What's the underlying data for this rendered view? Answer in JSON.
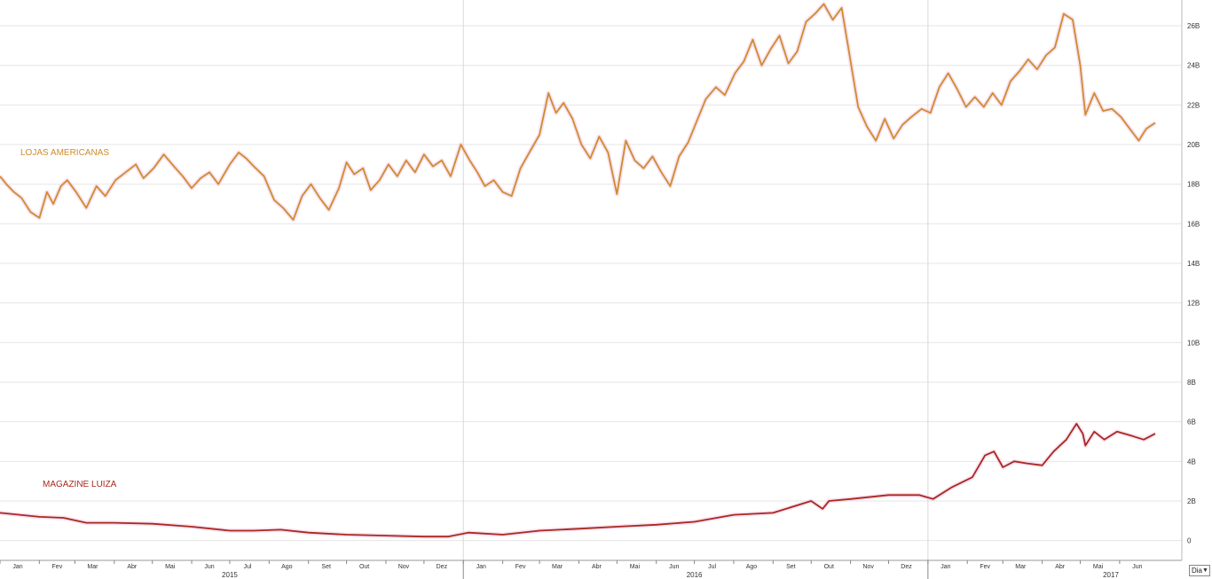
{
  "chart_data": {
    "type": "line",
    "y_axis": {
      "position": "right",
      "ylim": [
        -1,
        27.3
      ],
      "ticks": [
        0,
        2,
        4,
        6,
        8,
        10,
        12,
        14,
        16,
        18,
        20,
        22,
        24,
        26
      ],
      "tick_labels": [
        "0",
        "2B",
        "4B",
        "6B",
        "8B",
        "10B",
        "12B",
        "14B",
        "16B",
        "18B",
        "20B",
        "22B",
        "24B",
        "26B"
      ]
    },
    "x_axis": {
      "start": "2015-01-01",
      "end": "2017-07-20",
      "month_labels": [
        {
          "date": "2015-01-15",
          "label": "Jan"
        },
        {
          "date": "2015-02-15",
          "label": "Fev"
        },
        {
          "date": "2015-03-15",
          "label": "Mar"
        },
        {
          "date": "2015-04-15",
          "label": "Abr"
        },
        {
          "date": "2015-05-15",
          "label": "Mai"
        },
        {
          "date": "2015-06-15",
          "label": "Jun"
        },
        {
          "date": "2015-07-15",
          "label": "Jul"
        },
        {
          "date": "2015-08-15",
          "label": "Ago"
        },
        {
          "date": "2015-09-15",
          "label": "Set"
        },
        {
          "date": "2015-10-15",
          "label": "Out"
        },
        {
          "date": "2015-11-15",
          "label": "Nov"
        },
        {
          "date": "2015-12-15",
          "label": "Dez"
        },
        {
          "date": "2016-01-15",
          "label": "Jan"
        },
        {
          "date": "2016-02-15",
          "label": "Fev"
        },
        {
          "date": "2016-03-15",
          "label": "Mar"
        },
        {
          "date": "2016-04-15",
          "label": "Abr"
        },
        {
          "date": "2016-05-15",
          "label": "Mai"
        },
        {
          "date": "2016-06-15",
          "label": "Jun"
        },
        {
          "date": "2016-07-15",
          "label": "Jul"
        },
        {
          "date": "2016-08-15",
          "label": "Ago"
        },
        {
          "date": "2016-09-15",
          "label": "Set"
        },
        {
          "date": "2016-10-15",
          "label": "Out"
        },
        {
          "date": "2016-11-15",
          "label": "Nov"
        },
        {
          "date": "2016-12-15",
          "label": "Dez"
        },
        {
          "date": "2017-01-15",
          "label": "Jan"
        },
        {
          "date": "2017-02-15",
          "label": "Fev"
        },
        {
          "date": "2017-03-15",
          "label": "Mar"
        },
        {
          "date": "2017-04-15",
          "label": "Abr"
        },
        {
          "date": "2017-05-15",
          "label": "Mai"
        },
        {
          "date": "2017-06-15",
          "label": "Jun"
        }
      ],
      "year_labels": [
        {
          "date": "2015-07-01",
          "label": "2015"
        },
        {
          "date": "2016-07-01",
          "label": "2016"
        },
        {
          "date": "2017-07-01",
          "label": "2017"
        }
      ],
      "year_boundaries": [
        "2016-01-01",
        "2017-01-01"
      ]
    },
    "grid": true,
    "series": [
      {
        "name": "LOJAS AMERICANAS",
        "color": "#d08c2c",
        "points": [
          [
            "2015-01-01",
            18.4
          ],
          [
            "2015-01-06",
            18.0
          ],
          [
            "2015-01-12",
            17.6
          ],
          [
            "2015-01-18",
            17.3
          ],
          [
            "2015-01-25",
            16.6
          ],
          [
            "2015-02-01",
            16.3
          ],
          [
            "2015-02-07",
            17.6
          ],
          [
            "2015-02-12",
            17.0
          ],
          [
            "2015-02-18",
            17.9
          ],
          [
            "2015-02-23",
            18.2
          ],
          [
            "2015-03-02",
            17.6
          ],
          [
            "2015-03-10",
            16.8
          ],
          [
            "2015-03-18",
            17.9
          ],
          [
            "2015-03-25",
            17.4
          ],
          [
            "2015-04-02",
            18.2
          ],
          [
            "2015-04-10",
            18.6
          ],
          [
            "2015-04-18",
            19.0
          ],
          [
            "2015-04-24",
            18.3
          ],
          [
            "2015-05-02",
            18.8
          ],
          [
            "2015-05-10",
            19.5
          ],
          [
            "2015-05-18",
            18.9
          ],
          [
            "2015-05-25",
            18.4
          ],
          [
            "2015-06-01",
            17.8
          ],
          [
            "2015-06-08",
            18.3
          ],
          [
            "2015-06-15",
            18.6
          ],
          [
            "2015-06-22",
            18.0
          ],
          [
            "2015-07-01",
            19.0
          ],
          [
            "2015-07-08",
            19.6
          ],
          [
            "2015-07-14",
            19.3
          ],
          [
            "2015-07-20",
            18.9
          ],
          [
            "2015-07-28",
            18.4
          ],
          [
            "2015-08-05",
            17.2
          ],
          [
            "2015-08-12",
            16.8
          ],
          [
            "2015-08-20",
            16.2
          ],
          [
            "2015-08-27",
            17.4
          ],
          [
            "2015-09-03",
            18.0
          ],
          [
            "2015-09-10",
            17.3
          ],
          [
            "2015-09-17",
            16.7
          ],
          [
            "2015-09-25",
            17.8
          ],
          [
            "2015-10-01",
            19.1
          ],
          [
            "2015-10-07",
            18.5
          ],
          [
            "2015-10-14",
            18.8
          ],
          [
            "2015-10-20",
            17.7
          ],
          [
            "2015-10-27",
            18.2
          ],
          [
            "2015-11-03",
            19.0
          ],
          [
            "2015-11-10",
            18.4
          ],
          [
            "2015-11-17",
            19.2
          ],
          [
            "2015-11-24",
            18.6
          ],
          [
            "2015-12-01",
            19.5
          ],
          [
            "2015-12-08",
            18.9
          ],
          [
            "2015-12-15",
            19.2
          ],
          [
            "2015-12-22",
            18.4
          ],
          [
            "2015-12-30",
            20.0
          ],
          [
            "2016-01-06",
            19.2
          ],
          [
            "2016-01-12",
            18.6
          ],
          [
            "2016-01-18",
            17.9
          ],
          [
            "2016-01-25",
            18.2
          ],
          [
            "2016-02-01",
            17.6
          ],
          [
            "2016-02-08",
            17.4
          ],
          [
            "2016-02-15",
            18.8
          ],
          [
            "2016-02-22",
            19.6
          ],
          [
            "2016-03-01",
            20.5
          ],
          [
            "2016-03-08",
            22.6
          ],
          [
            "2016-03-14",
            21.6
          ],
          [
            "2016-03-20",
            22.1
          ],
          [
            "2016-03-27",
            21.3
          ],
          [
            "2016-04-03",
            20.0
          ],
          [
            "2016-04-10",
            19.3
          ],
          [
            "2016-04-17",
            20.4
          ],
          [
            "2016-04-24",
            19.6
          ],
          [
            "2016-05-01",
            17.5
          ],
          [
            "2016-05-08",
            20.2
          ],
          [
            "2016-05-15",
            19.2
          ],
          [
            "2016-05-22",
            18.8
          ],
          [
            "2016-05-29",
            19.4
          ],
          [
            "2016-06-05",
            18.6
          ],
          [
            "2016-06-12",
            17.9
          ],
          [
            "2016-06-19",
            19.4
          ],
          [
            "2016-06-26",
            20.1
          ],
          [
            "2016-07-03",
            21.2
          ],
          [
            "2016-07-10",
            22.3
          ],
          [
            "2016-07-18",
            22.9
          ],
          [
            "2016-07-25",
            22.5
          ],
          [
            "2016-08-02",
            23.6
          ],
          [
            "2016-08-09",
            24.2
          ],
          [
            "2016-08-16",
            25.3
          ],
          [
            "2016-08-23",
            24.0
          ],
          [
            "2016-08-30",
            24.8
          ],
          [
            "2016-09-06",
            25.5
          ],
          [
            "2016-09-13",
            24.1
          ],
          [
            "2016-09-20",
            24.7
          ],
          [
            "2016-09-27",
            26.2
          ],
          [
            "2016-10-04",
            26.6
          ],
          [
            "2016-10-11",
            27.1
          ],
          [
            "2016-10-18",
            26.3
          ],
          [
            "2016-10-25",
            26.9
          ],
          [
            "2016-10-31",
            24.6
          ],
          [
            "2016-11-07",
            21.9
          ],
          [
            "2016-11-14",
            20.9
          ],
          [
            "2016-11-21",
            20.2
          ],
          [
            "2016-11-28",
            21.3
          ],
          [
            "2016-12-05",
            20.3
          ],
          [
            "2016-12-12",
            21.0
          ],
          [
            "2016-12-19",
            21.4
          ],
          [
            "2016-12-27",
            21.8
          ],
          [
            "2017-01-03",
            21.6
          ],
          [
            "2017-01-10",
            22.9
          ],
          [
            "2017-01-17",
            23.6
          ],
          [
            "2017-01-24",
            22.8
          ],
          [
            "2017-01-31",
            21.9
          ],
          [
            "2017-02-07",
            22.4
          ],
          [
            "2017-02-14",
            21.9
          ],
          [
            "2017-02-21",
            22.6
          ],
          [
            "2017-02-28",
            22.0
          ],
          [
            "2017-03-07",
            23.2
          ],
          [
            "2017-03-14",
            23.7
          ],
          [
            "2017-03-21",
            24.3
          ],
          [
            "2017-03-28",
            23.8
          ],
          [
            "2017-04-04",
            24.5
          ],
          [
            "2017-04-11",
            24.9
          ],
          [
            "2017-04-18",
            26.6
          ],
          [
            "2017-04-25",
            26.3
          ],
          [
            "2017-05-01",
            24.0
          ],
          [
            "2017-05-05",
            21.5
          ],
          [
            "2017-05-12",
            22.6
          ],
          [
            "2017-05-19",
            21.7
          ],
          [
            "2017-05-26",
            21.8
          ],
          [
            "2017-06-02",
            21.4
          ],
          [
            "2017-06-09",
            20.8
          ],
          [
            "2017-06-16",
            20.2
          ],
          [
            "2017-06-22",
            20.8
          ],
          [
            "2017-06-29",
            21.1
          ]
        ]
      },
      {
        "name": "MAGAZINE LUIZA",
        "color": "#a8281e",
        "points": [
          [
            "2015-01-01",
            1.4
          ],
          [
            "2015-02-01",
            1.2
          ],
          [
            "2015-02-20",
            1.15
          ],
          [
            "2015-03-10",
            0.9
          ],
          [
            "2015-04-01",
            0.9
          ],
          [
            "2015-05-01",
            0.85
          ],
          [
            "2015-06-01",
            0.7
          ],
          [
            "2015-07-01",
            0.5
          ],
          [
            "2015-07-20",
            0.5
          ],
          [
            "2015-08-10",
            0.55
          ],
          [
            "2015-09-01",
            0.4
          ],
          [
            "2015-10-01",
            0.3
          ],
          [
            "2015-11-01",
            0.25
          ],
          [
            "2015-12-01",
            0.2
          ],
          [
            "2015-12-20",
            0.2
          ],
          [
            "2016-01-05",
            0.4
          ],
          [
            "2016-02-01",
            0.3
          ],
          [
            "2016-03-01",
            0.5
          ],
          [
            "2016-04-01",
            0.6
          ],
          [
            "2016-05-01",
            0.7
          ],
          [
            "2016-06-01",
            0.8
          ],
          [
            "2016-07-01",
            0.95
          ],
          [
            "2016-08-01",
            1.3
          ],
          [
            "2016-09-01",
            1.4
          ],
          [
            "2016-10-01",
            2.0
          ],
          [
            "2016-10-10",
            1.6
          ],
          [
            "2016-10-15",
            2.0
          ],
          [
            "2016-11-01",
            2.1
          ],
          [
            "2016-12-01",
            2.3
          ],
          [
            "2016-12-25",
            2.3
          ],
          [
            "2017-01-05",
            2.1
          ],
          [
            "2017-01-20",
            2.7
          ],
          [
            "2017-02-05",
            3.2
          ],
          [
            "2017-02-15",
            4.3
          ],
          [
            "2017-02-22",
            4.5
          ],
          [
            "2017-03-01",
            3.7
          ],
          [
            "2017-03-10",
            4.0
          ],
          [
            "2017-03-20",
            3.9
          ],
          [
            "2017-04-01",
            3.8
          ],
          [
            "2017-04-10",
            4.5
          ],
          [
            "2017-04-20",
            5.1
          ],
          [
            "2017-04-28",
            5.9
          ],
          [
            "2017-05-03",
            5.4
          ],
          [
            "2017-05-05",
            4.8
          ],
          [
            "2017-05-12",
            5.5
          ],
          [
            "2017-05-20",
            5.1
          ],
          [
            "2017-05-30",
            5.5
          ],
          [
            "2017-06-10",
            5.3
          ],
          [
            "2017-06-20",
            5.1
          ],
          [
            "2017-06-29",
            5.4
          ]
        ]
      }
    ]
  },
  "controls": {
    "period_select_value": "Dia"
  }
}
